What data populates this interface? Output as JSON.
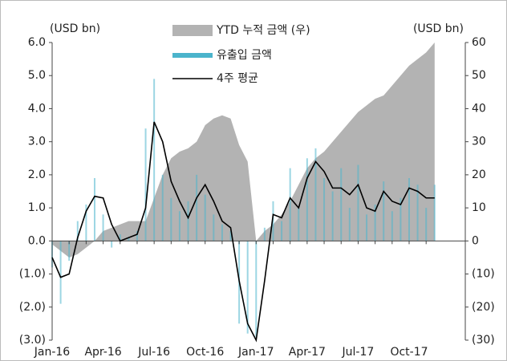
{
  "chart_data": {
    "type": "combo",
    "y_label": "(USD bn)",
    "y2_label": "(USD bn)",
    "categories": [
      "Jan-16",
      null,
      null,
      null,
      null,
      null,
      "Apr-16",
      null,
      null,
      null,
      null,
      null,
      "Jul-16",
      null,
      null,
      null,
      null,
      null,
      "Oct-16",
      null,
      null,
      null,
      null,
      null,
      "Jan-17",
      null,
      null,
      null,
      null,
      null,
      "Apr-17",
      null,
      null,
      null,
      null,
      null,
      "Jul-17",
      null,
      null,
      null,
      null,
      null,
      "Oct-17",
      null,
      null,
      null
    ],
    "series": [
      {
        "name": "YTD 누적 금액 (우)",
        "kind": "area",
        "axis": "y2",
        "color": "#b3b3b3",
        "values": [
          -1,
          -3,
          -5,
          -4,
          -2,
          0,
          3,
          4,
          5,
          6,
          6,
          6,
          13,
          20,
          25,
          27,
          28,
          30,
          35,
          37,
          38,
          37,
          29,
          24,
          0,
          3,
          5,
          8,
          12,
          17,
          22,
          25,
          27,
          30,
          33,
          36,
          39,
          41,
          43,
          44,
          47,
          50,
          53,
          55,
          57,
          60
        ]
      },
      {
        "name": "유출입 금액",
        "kind": "bar",
        "color": "#4bb4cc",
        "values": [
          -0.8,
          -1.9,
          -0.6,
          0.6,
          1.1,
          1.9,
          0.8,
          -0.2,
          0.2,
          0.1,
          0.3,
          3.4,
          4.9,
          2.0,
          1.3,
          0.9,
          1.2,
          2.0,
          1.4,
          0.8,
          0.5,
          0.3,
          -2.5,
          -2.8,
          -2.9,
          0.4,
          1.2,
          0.6,
          2.2,
          1.0,
          2.5,
          2.8,
          1.9,
          1.5,
          2.2,
          1.0,
          2.3,
          0.8,
          1.1,
          1.8,
          0.9,
          1.3,
          1.9,
          1.7,
          1.0,
          1.7
        ]
      },
      {
        "name": "4주 평균",
        "kind": "line",
        "color": "#000000",
        "values": [
          -0.5,
          -1.1,
          -1.0,
          0.1,
          0.9,
          1.35,
          1.3,
          0.5,
          0.0,
          0.1,
          0.2,
          1.0,
          3.6,
          3.0,
          1.8,
          1.2,
          0.7,
          1.3,
          1.7,
          1.2,
          0.6,
          0.4,
          -1.2,
          -2.5,
          -3.0,
          -1.2,
          0.8,
          0.7,
          1.3,
          1.0,
          1.9,
          2.4,
          2.1,
          1.6,
          1.6,
          1.4,
          1.7,
          1.0,
          0.9,
          1.5,
          1.2,
          1.1,
          1.6,
          1.5,
          1.3,
          1.3
        ]
      }
    ],
    "ylim": [
      -3,
      6
    ],
    "yticks": [
      {
        "value": -3,
        "label": "(3.0)"
      },
      {
        "value": -2,
        "label": "(2.0)"
      },
      {
        "value": -1,
        "label": "(1.0)"
      },
      {
        "value": 0,
        "label": "0.0"
      },
      {
        "value": 1,
        "label": "1.0"
      },
      {
        "value": 2,
        "label": "2.0"
      },
      {
        "value": 3,
        "label": "3.0"
      },
      {
        "value": 4,
        "label": "4.0"
      },
      {
        "value": 5,
        "label": "5.0"
      },
      {
        "value": 6,
        "label": "6.0"
      }
    ],
    "y2lim": [
      -30,
      60
    ],
    "y2ticks": [
      {
        "value": -30,
        "label": "(30)"
      },
      {
        "value": -20,
        "label": "(20)"
      },
      {
        "value": -10,
        "label": "(10)"
      },
      0,
      10,
      20,
      30,
      40,
      50,
      60
    ],
    "negative_tick_color": "#e0261b"
  }
}
